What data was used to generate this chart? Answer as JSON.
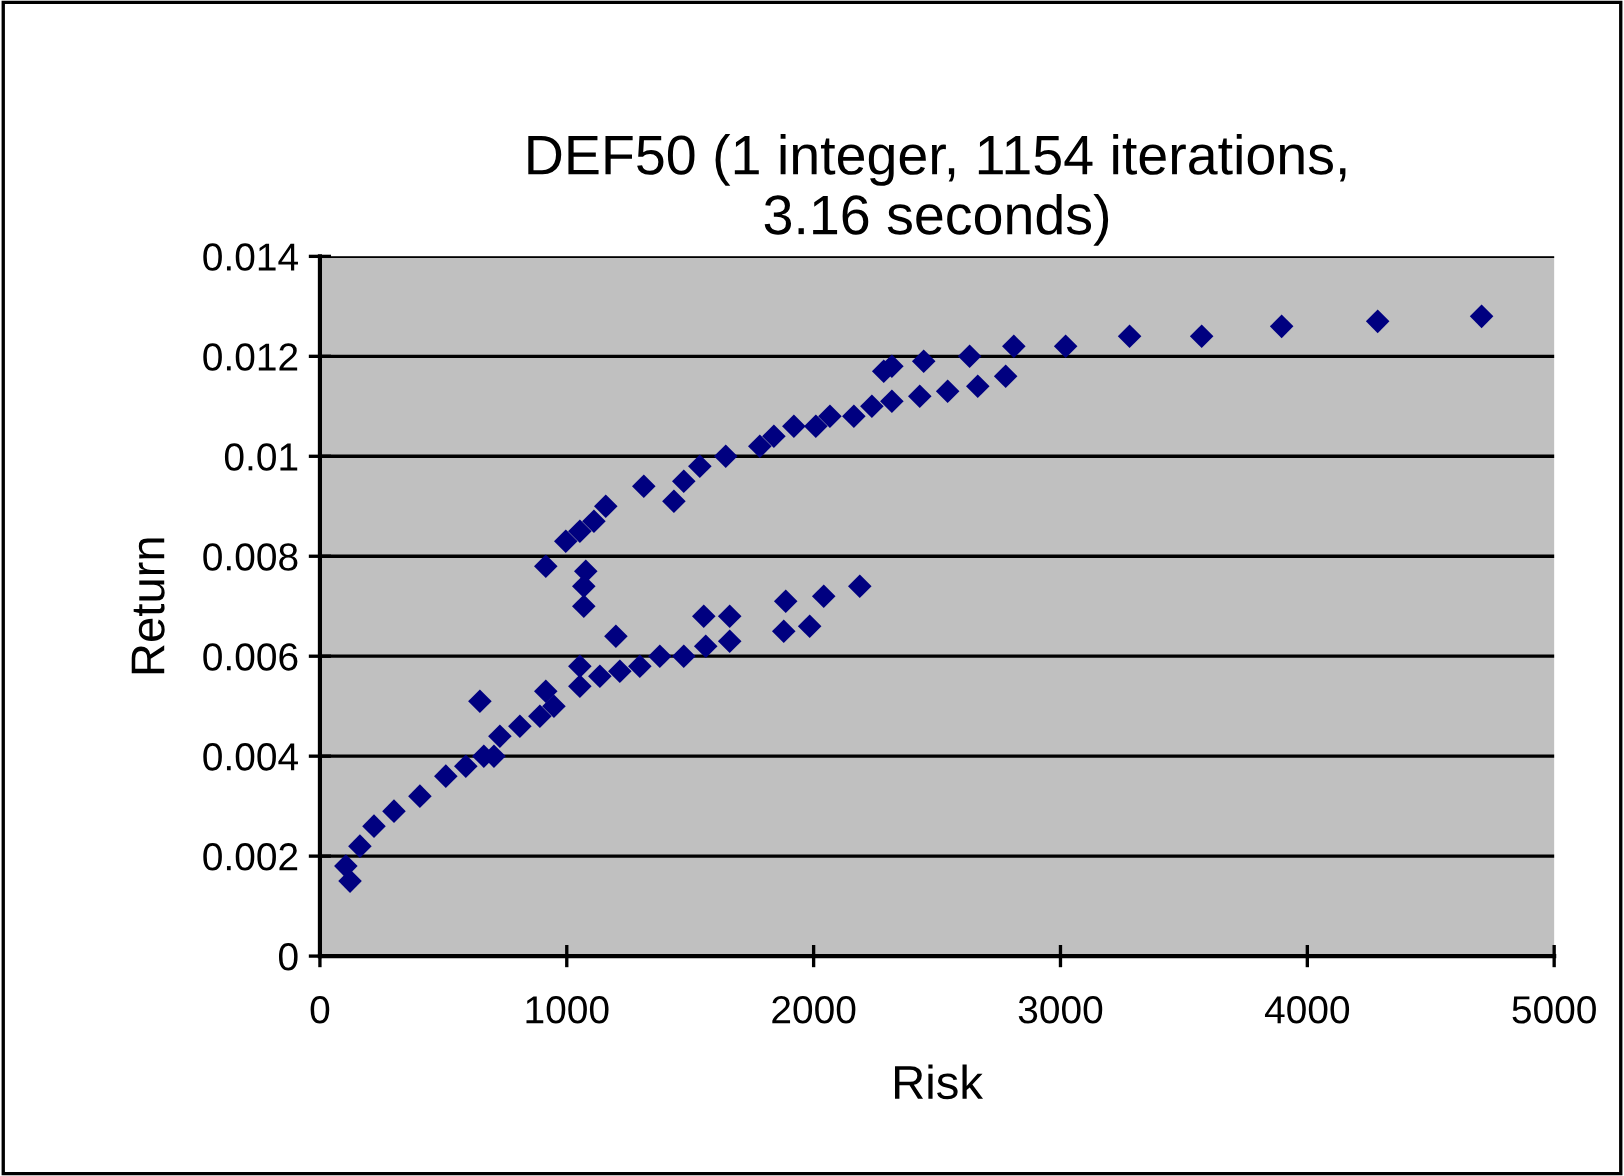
{
  "chart_data": {
    "type": "scatter",
    "title": "DEF50 (1 integer, 1154 iterations,\n3.16 seconds)",
    "xlabel": "Risk",
    "ylabel": "Return",
    "x": [
      122,
      105,
      162,
      219,
      300,
      405,
      510,
      591,
      664,
      705,
      729,
      810,
      891,
      948,
      915,
      648,
      1053,
      1053,
      1134,
      1199,
      1215,
      1296,
      1377,
      1474,
      1563,
      1660,
      1555,
      1660,
      1879,
      1887,
      1984,
      2041,
      2187,
      1077,
      1069,
      1069,
      915,
      996,
      1053,
      1110,
      1158,
      1312,
      1434,
      1474,
      1539,
      1644,
      1782,
      1839,
      1920,
      2009,
      2066,
      2163,
      2236,
      2317,
      2430,
      2543,
      2665,
      2778,
      2284,
      2317,
      2446,
      2632,
      2811,
      3021,
      3280,
      3572,
      3896,
      4285,
      4706
    ],
    "values": [
      0.0015,
      0.0018,
      0.0022,
      0.0026,
      0.0029,
      0.0032,
      0.0036,
      0.0038,
      0.004,
      0.004,
      0.0044,
      0.0046,
      0.0048,
      0.005,
      0.0053,
      0.0051,
      0.0058,
      0.0054,
      0.0056,
      0.0064,
      0.0057,
      0.0058,
      0.006,
      0.006,
      0.0062,
      0.0063,
      0.0068,
      0.0068,
      0.0065,
      0.0071,
      0.0066,
      0.0072,
      0.0074,
      0.0077,
      0.0074,
      0.007,
      0.0078,
      0.0083,
      0.0085,
      0.0087,
      0.009,
      0.0094,
      0.0091,
      0.0095,
      0.0098,
      0.01,
      0.0102,
      0.0104,
      0.0106,
      0.0106,
      0.0108,
      0.0108,
      0.011,
      0.0111,
      0.0112,
      0.0113,
      0.0114,
      0.0116,
      0.0117,
      0.0118,
      0.0119,
      0.012,
      0.0122,
      0.0122,
      0.0124,
      0.0124,
      0.0126,
      0.0127,
      0.0128
    ],
    "color": "#000080",
    "marker": "diamond",
    "grid": "y",
    "xlim": [
      0,
      5000
    ],
    "xticks": [
      0,
      1000,
      2000,
      3000,
      4000,
      5000
    ],
    "ylim": [
      0,
      0.014
    ],
    "yticks": [
      0,
      0.002,
      0.004,
      0.006,
      0.008,
      0.01,
      0.012,
      0.014
    ]
  }
}
